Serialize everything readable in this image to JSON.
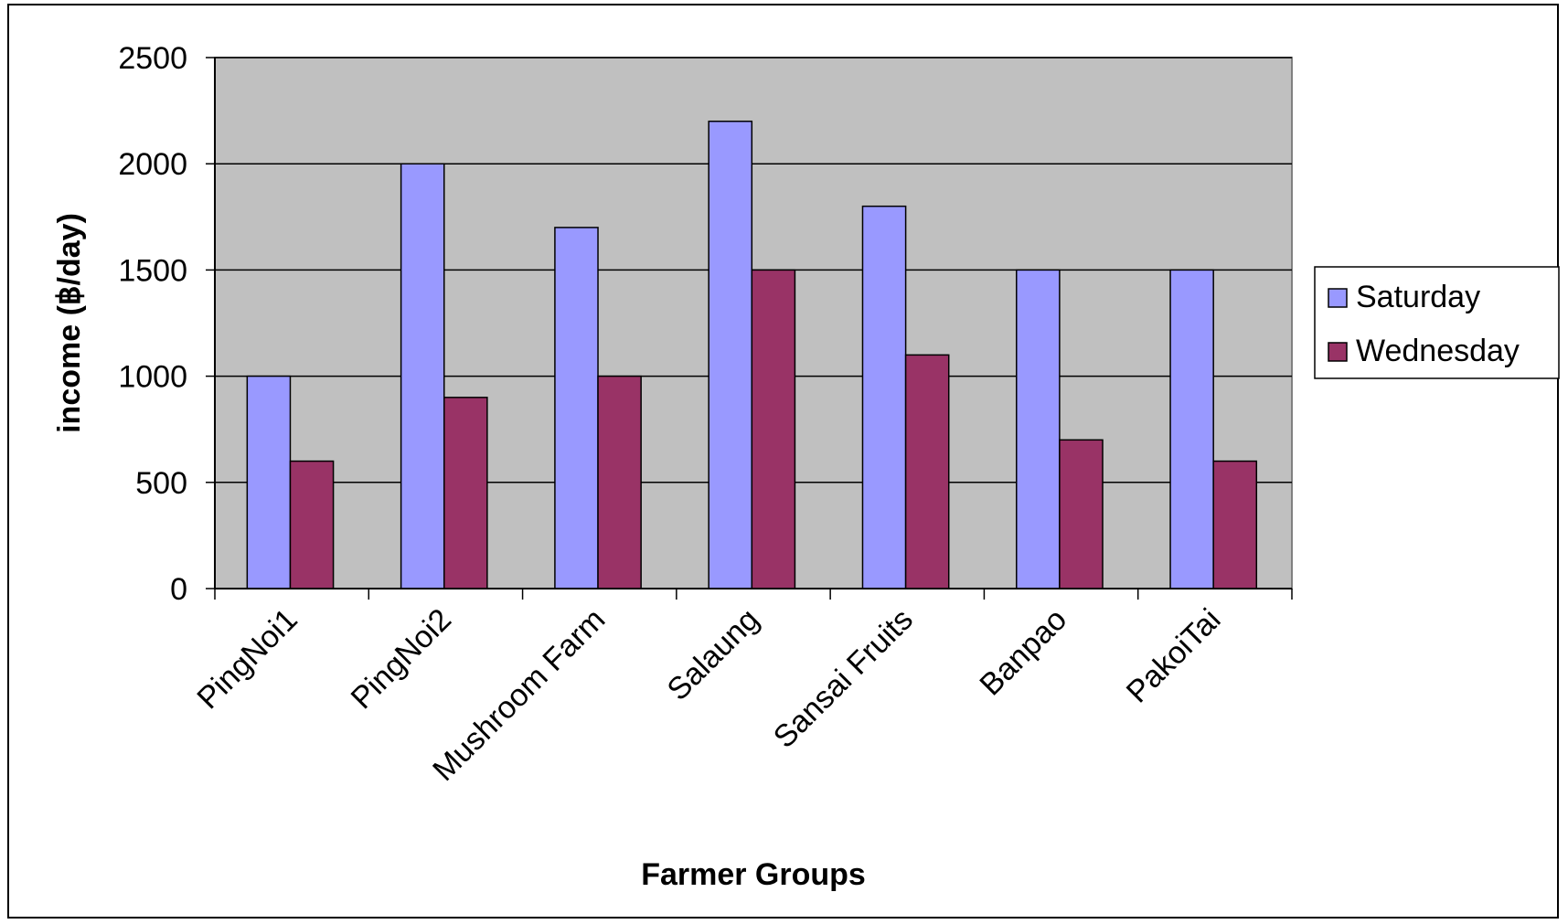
{
  "chart_data": {
    "type": "bar",
    "title": "",
    "xlabel": "Farmer Groups",
    "ylabel": "income (฿/day)",
    "ylim": [
      0,
      2500
    ],
    "yticks": [
      0,
      500,
      1000,
      1500,
      2000,
      2500
    ],
    "categories": [
      "PingNoi1",
      "PingNoi2",
      "Mushroom Farm",
      "Salaung",
      "Sansai Fruits",
      "Banpao",
      "PakoiTai"
    ],
    "series": [
      {
        "name": "Saturday",
        "color": "#9999ff",
        "values": [
          1000,
          2000,
          1700,
          2200,
          1800,
          1500,
          1500
        ]
      },
      {
        "name": "Wednesday",
        "color": "#993366",
        "values": [
          600,
          900,
          1000,
          1500,
          1100,
          700,
          600
        ]
      }
    ],
    "grid": true,
    "plot_background": "#c0c0c0",
    "legend_position": "right"
  }
}
